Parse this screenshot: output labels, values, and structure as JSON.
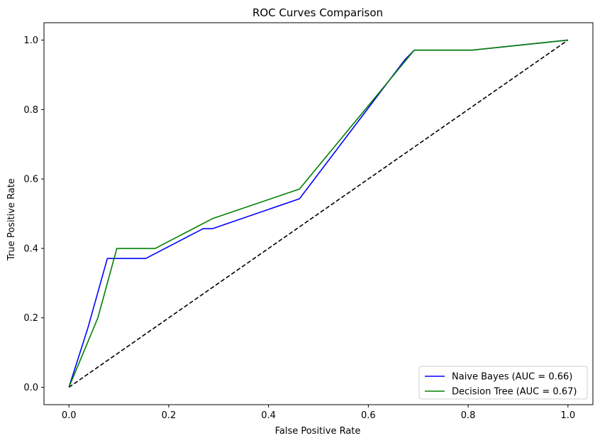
{
  "chart_data": {
    "type": "line",
    "title": "ROC Curves Comparison",
    "xlabel": "False Positive Rate",
    "ylabel": "True Positive Rate",
    "xlim": [
      -0.05,
      1.05
    ],
    "ylim": [
      -0.05,
      1.05
    ],
    "xticks": [
      "0.0",
      "0.2",
      "0.4",
      "0.6",
      "0.8",
      "1.0"
    ],
    "yticks": [
      "0.0",
      "0.2",
      "0.4",
      "0.6",
      "0.8",
      "1.0"
    ],
    "grid": false,
    "legend_position": "lower-right",
    "series": [
      {
        "name": "Naive Bayes (AUC = 0.66)",
        "color": "#0000ff",
        "x": [
          0.0,
          0.038,
          0.077,
          0.154,
          0.269,
          0.288,
          0.462,
          0.673,
          0.692,
          0.808,
          1.0
        ],
        "y": [
          0.0,
          0.171,
          0.371,
          0.371,
          0.457,
          0.457,
          0.543,
          0.943,
          0.971,
          0.971,
          1.0
        ]
      },
      {
        "name": "Decision Tree (AUC = 0.67)",
        "color": "#008000",
        "x": [
          0.0,
          0.058,
          0.096,
          0.173,
          0.288,
          0.462,
          0.692,
          0.808,
          1.0
        ],
        "y": [
          0.0,
          0.2,
          0.4,
          0.4,
          0.486,
          0.571,
          0.971,
          0.971,
          1.0
        ]
      },
      {
        "name": "",
        "color": "#000000",
        "dashed": true,
        "x": [
          0.0,
          1.0
        ],
        "y": [
          0.0,
          1.0
        ]
      }
    ]
  }
}
